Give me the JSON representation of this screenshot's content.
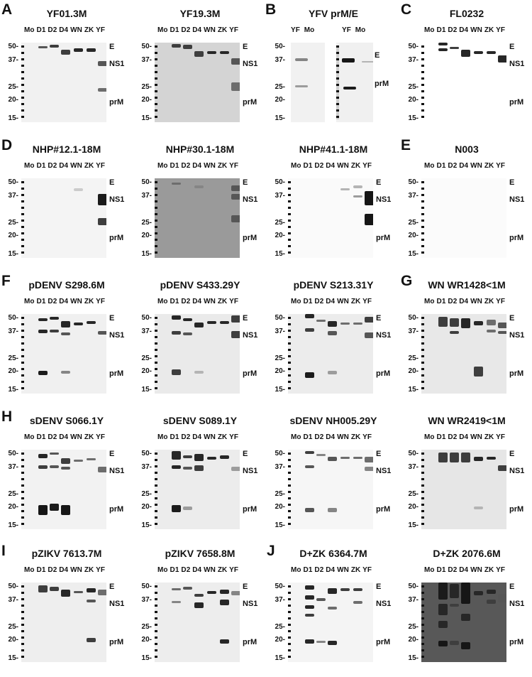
{
  "panel_letters": [
    "A",
    "B",
    "C",
    "D",
    "E",
    "F",
    "G",
    "H",
    "I",
    "J"
  ],
  "lane_labels": "Mo D1 D2 D4 WN ZK YF",
  "lane_labels_b_left": "YF  Mo",
  "lane_labels_b_right": "YF  Mo",
  "mw_markers": [
    "50-",
    "37-",
    "25-",
    "20-",
    "15-"
  ],
  "band_labels": {
    "E": "E",
    "NS1": "NS1",
    "prM": "prM"
  },
  "panels": [
    {
      "title": "YF01.3M"
    },
    {
      "title": "YF19.3M"
    },
    {
      "title": "YFV prM/E"
    },
    {
      "title": "FL0232"
    },
    {
      "title": "NHP#12.1-18M"
    },
    {
      "title": "NHP#30.1-18M"
    },
    {
      "title": "NHP#41.1-18M"
    },
    {
      "title": "N003"
    },
    {
      "title": "pDENV S298.6M"
    },
    {
      "title": "pDENV S433.29Y"
    },
    {
      "title": "pDENV S213.31Y"
    },
    {
      "title": "WN WR1428<1M"
    },
    {
      "title": "sDENV S066.1Y"
    },
    {
      "title": "sDENV S089.1Y"
    },
    {
      "title": "sDENV NH005.29Y"
    },
    {
      "title": "WN WR2419<1M"
    },
    {
      "title": "pZIKV 7613.7M"
    },
    {
      "title": "pZIKV 7658.8M"
    },
    {
      "title": "D+ZK 6364.7M"
    },
    {
      "title": "D+ZK 2076.6M"
    }
  ]
}
